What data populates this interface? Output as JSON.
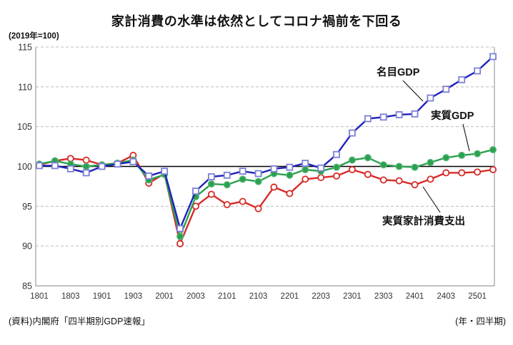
{
  "title": "家計消費の水準は依然としてコロナ禍前を下回る",
  "unit_label": "(2019年=100)",
  "footer": {
    "source": "(資料)内閣府「四半期別GDP速報」",
    "axis_note": "(年・四半期)"
  },
  "chart_data": {
    "type": "line",
    "title": "家計消費の水準は依然としてコロナ禍前を下回る",
    "index_note": "2019年=100",
    "xlabel": "年・四半期",
    "ylabel": "",
    "ylim": [
      85,
      115
    ],
    "yticks": [
      85,
      90,
      95,
      100,
      105,
      110,
      115
    ],
    "baseline": 100,
    "grid": "horizontal-dashed",
    "legend_position": "inline-annotations",
    "categories": [
      "1801",
      "1802",
      "1803",
      "1804",
      "1901",
      "1902",
      "1903",
      "1904",
      "2001",
      "2002",
      "2003",
      "2004",
      "2101",
      "2102",
      "2103",
      "2104",
      "2201",
      "2202",
      "2203",
      "2204",
      "2301",
      "2302",
      "2303",
      "2304",
      "2401",
      "2402",
      "2403",
      "2404",
      "2501",
      "2502"
    ],
    "x_tick_labels": [
      "1801",
      "1803",
      "1901",
      "1903",
      "2001",
      "2003",
      "2101",
      "2103",
      "2201",
      "2203",
      "2301",
      "2303",
      "2401",
      "2403",
      "2501"
    ],
    "series": [
      {
        "name": "実質家計消費支出",
        "color": "#d62b28",
        "marker": "open-circle",
        "marker_edge": "#d62b28",
        "values": [
          100.2,
          100.7,
          101.0,
          100.8,
          100.2,
          100.4,
          101.4,
          97.9,
          99.1,
          90.3,
          95.0,
          96.5,
          95.2,
          95.6,
          94.7,
          97.4,
          96.6,
          98.4,
          98.6,
          98.8,
          99.6,
          99.0,
          98.3,
          98.2,
          97.7,
          98.4,
          99.2,
          99.2,
          99.3,
          99.6
        ]
      },
      {
        "name": "実質GDP",
        "color": "#2ba14f",
        "marker": "filled-circle",
        "marker_edge": "#5cb87d",
        "values": [
          100.3,
          100.7,
          100.3,
          100.0,
          100.2,
          100.4,
          100.8,
          98.3,
          99.0,
          91.2,
          96.2,
          97.8,
          97.7,
          98.4,
          98.1,
          99.1,
          98.9,
          99.6,
          99.4,
          99.9,
          100.8,
          101.1,
          100.2,
          100.0,
          99.9,
          100.5,
          101.1,
          101.4,
          101.6,
          102.1
        ]
      },
      {
        "name": "名目GDP",
        "color": "#1e22b8",
        "marker": "open-square",
        "marker_edge": "#7b7fd8",
        "values": [
          100.1,
          100.1,
          99.7,
          99.2,
          100.0,
          100.3,
          100.6,
          98.8,
          99.4,
          92.2,
          96.9,
          98.7,
          98.9,
          99.4,
          99.1,
          99.7,
          99.9,
          100.4,
          99.8,
          101.5,
          104.2,
          106.0,
          106.2,
          106.5,
          106.6,
          108.6,
          109.7,
          110.9,
          112.0,
          113.8
        ]
      }
    ]
  }
}
